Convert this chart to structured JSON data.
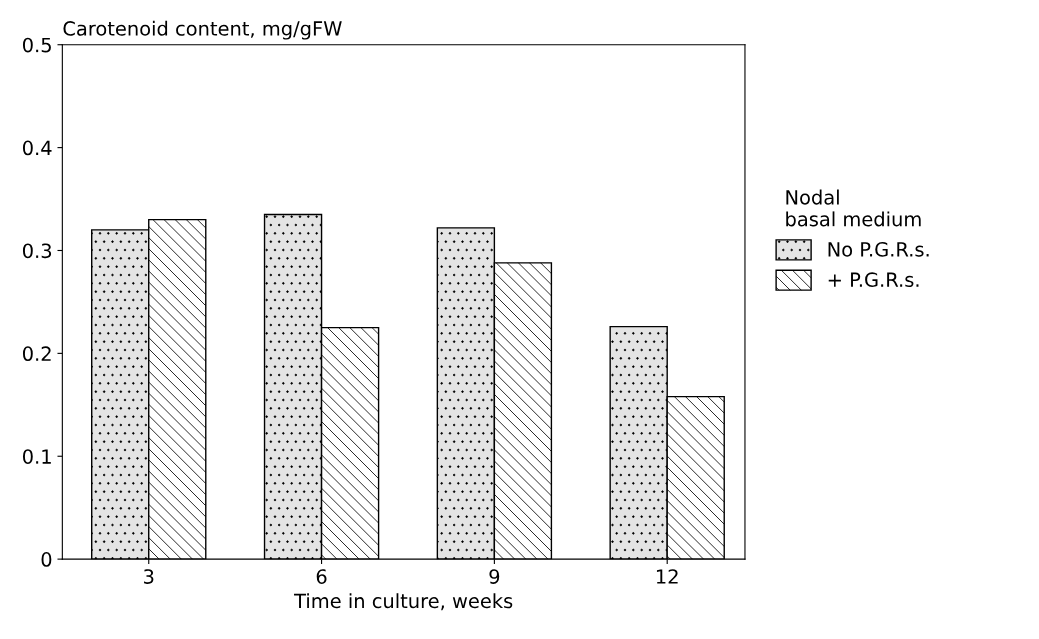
{
  "chart_data": {
    "type": "bar",
    "ylabel": "Carotenoid content, mg/gFW",
    "xlabel": "Time in culture, weeks",
    "legend_title": "Nodal\nbasal medium",
    "categories": [
      "3",
      "6",
      "9",
      "12"
    ],
    "series": [
      {
        "name": "No P.G.R.s.",
        "color": "#e4e4e4",
        "values": [
          0.32,
          0.335,
          0.322,
          0.226
        ]
      },
      {
        "name": "+ P.G.R.s.",
        "color": "#ffffff",
        "values": [
          0.33,
          0.225,
          0.288,
          0.158
        ]
      }
    ],
    "ylim": [
      0,
      0.5
    ],
    "yticks": [
      0,
      0.1,
      0.2,
      0.3,
      0.4,
      0.5
    ],
    "grid": false,
    "legend": "right"
  }
}
